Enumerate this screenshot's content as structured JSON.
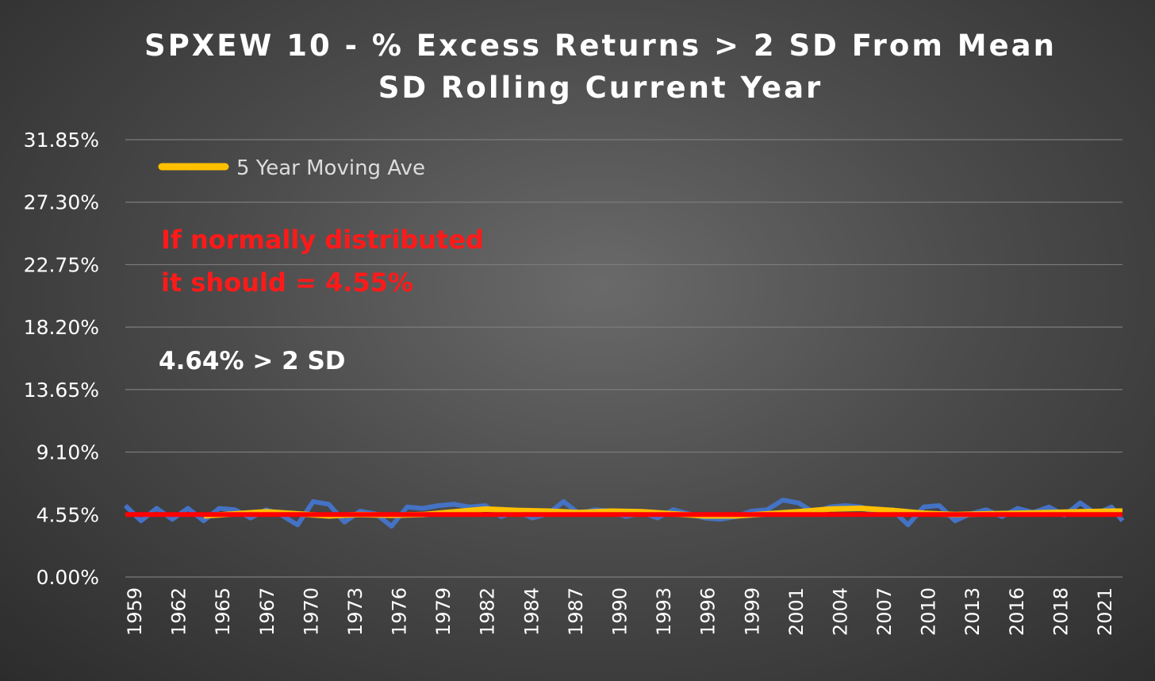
{
  "chart_data": {
    "type": "line",
    "title_lines": [
      "SPXEW 10 - % Excess Returns > 2 SD From Mean",
      "SD Rolling Current Year"
    ],
    "xlabel": "",
    "ylabel": "",
    "ylim": [
      0,
      31.85
    ],
    "y_ticks": [
      "0.00%",
      "4.55%",
      "9.10%",
      "13.65%",
      "18.20%",
      "22.75%",
      "27.30%",
      "31.85%"
    ],
    "x_range": [
      1959,
      2022.7
    ],
    "x_ticks": [
      "1959",
      "1962",
      "1965",
      "1967",
      "1970",
      "1973",
      "1976",
      "1979",
      "1982",
      "1984",
      "1987",
      "1990",
      "1993",
      "1996",
      "1999",
      "2001",
      "2004",
      "2007",
      "2010",
      "2013",
      "2016",
      "2018",
      "2021"
    ],
    "grid": true,
    "legend": {
      "position": "top-left",
      "entries": [
        {
          "label": "5 Year Moving Ave",
          "color": "#ffc000"
        }
      ]
    },
    "annotations": {
      "red_note": [
        "If normally distributed",
        "it should = 4.55%"
      ],
      "white_note": "4.64% > 2 SD"
    },
    "series": [
      {
        "color": "#4472c4",
        "x": [
          1959.0,
          1960.0,
          1961.0,
          1962.0,
          1963.0,
          1964.0,
          1965.0,
          1966.0,
          1967.0,
          1968.0,
          1969.0,
          1970.0,
          1971.0,
          1972.0,
          1973.0,
          1974.0,
          1975.0,
          1976.0,
          1977.0,
          1978.0,
          1979.0,
          1980.0,
          1981.0,
          1982.0,
          1983.0,
          1984.0,
          1985.0,
          1986.0,
          1987.0,
          1988.0,
          1989.0,
          1990.0,
          1991.0,
          1992.0,
          1993.0,
          1994.0,
          1995.0,
          1996.0,
          1997.0,
          1998.0,
          1999.0,
          2000.0,
          2001.0,
          2002.0,
          2003.0,
          2004.0,
          2005.0,
          2006.0,
          2007.0,
          2008.0,
          2009.0,
          2010.0,
          2011.0,
          2012.0,
          2013.0,
          2014.0,
          2015.0,
          2016.0,
          2017.0,
          2018.0,
          2019.0,
          2020.0,
          2021.0,
          2022.0,
          2022.7
        ],
        "values": [
          5.2,
          4.1,
          5.0,
          4.2,
          5.0,
          4.1,
          5.0,
          4.9,
          4.3,
          4.9,
          4.5,
          3.8,
          5.5,
          5.3,
          4.0,
          4.8,
          4.6,
          3.7,
          5.1,
          5.0,
          5.2,
          5.3,
          5.1,
          5.2,
          4.4,
          4.8,
          4.3,
          4.6,
          5.5,
          4.6,
          4.9,
          4.8,
          4.4,
          4.7,
          4.3,
          4.9,
          4.6,
          4.3,
          4.2,
          4.4,
          4.8,
          4.9,
          5.6,
          5.4,
          4.7,
          5.1,
          5.2,
          5.1,
          4.6,
          4.9,
          3.8,
          5.1,
          5.2,
          4.1,
          4.6,
          4.9,
          4.4,
          5.0,
          4.7,
          5.1,
          4.5,
          5.4,
          4.6,
          5.1,
          4.1
        ]
      },
      {
        "name": "5 Year Moving Ave",
        "color": "#ffc000",
        "x": [
          1964.0,
          1966.0,
          1968.0,
          1970.0,
          1972.0,
          1974.0,
          1976.0,
          1978.0,
          1980.0,
          1982.0,
          1984.0,
          1986.0,
          1988.0,
          1990.0,
          1992.0,
          1994.0,
          1996.0,
          1998.0,
          2000.0,
          2002.0,
          2004.0,
          2006.0,
          2008.0,
          2010.0,
          2012.0,
          2014.0,
          2016.0,
          2018.0,
          2020.0,
          2022.0,
          2022.7
        ],
        "values": [
          4.45,
          4.6,
          4.75,
          4.6,
          4.45,
          4.55,
          4.5,
          4.55,
          4.75,
          4.95,
          4.85,
          4.8,
          4.7,
          4.8,
          4.75,
          4.6,
          4.45,
          4.45,
          4.6,
          4.75,
          4.95,
          5.0,
          4.85,
          4.65,
          4.55,
          4.6,
          4.65,
          4.7,
          4.75,
          4.8,
          4.8
        ]
      },
      {
        "color": "#ff0000",
        "x": [
          1959.0,
          2022.7
        ],
        "values": [
          4.55,
          4.55
        ]
      }
    ]
  }
}
